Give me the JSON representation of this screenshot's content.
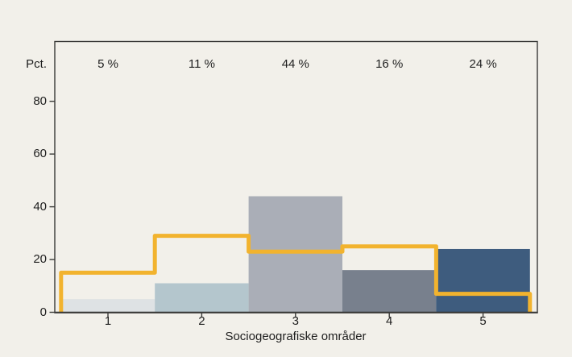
{
  "figure": {
    "background_color": "#f2f0ea",
    "axis_color": "#3a3a38",
    "text_color": "#1e1e1e"
  },
  "chart_data": {
    "type": "bar",
    "title": "",
    "xlabel": "Sociogeografiske områder",
    "ylabel": "Pct.",
    "categories": [
      "1",
      "2",
      "3",
      "4",
      "5"
    ],
    "bar_values": [
      5,
      11,
      44,
      16,
      24
    ],
    "bar_labels": [
      "5 %",
      "11 %",
      "44 %",
      "16 %",
      "24 %"
    ],
    "bar_colors": [
      "#dee2e4",
      "#b4c6cd",
      "#aaaeb7",
      "#78808d",
      "#3e5c7e"
    ],
    "y_ticks": [
      0,
      20,
      40,
      60,
      80
    ],
    "ylim": [
      0,
      103
    ],
    "grid": "off",
    "legend": "none",
    "series": [
      {
        "name": "bars",
        "type": "bar",
        "values": [
          5,
          11,
          44,
          16,
          24
        ]
      },
      {
        "name": "reference-step-line",
        "type": "step",
        "values": [
          15,
          29,
          23,
          25,
          7
        ],
        "color": "#f2b32e"
      }
    ]
  }
}
